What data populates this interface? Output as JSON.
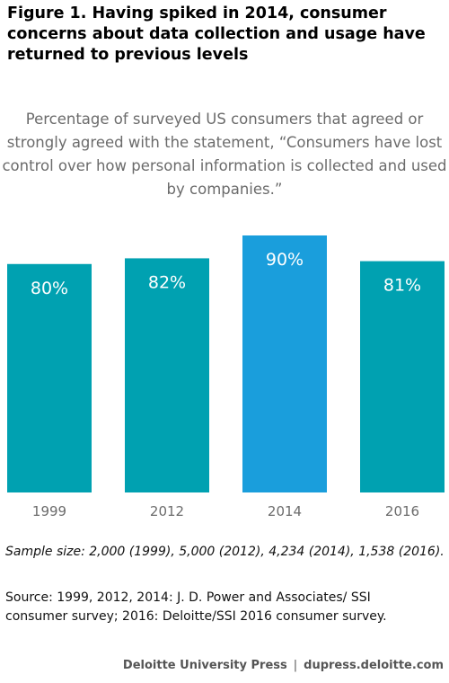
{
  "title": "Figure 1. Having spiked in 2014, consumer concerns about data collection and usage have returned to previous levels",
  "subtitle": "Percentage of surveyed US consumers that agreed or strongly agreed with the statement, “Consumers have lost control over how personal information is collected and used by companies.”",
  "note": "Sample size: 2,000 (1999), 5,000 (2012), 4,234 (2014), 1,538 (2016).",
  "source": "Source: 1999, 2012, 2014: J. D. Power and Associates/ SSI consumer survey; 2016: Deloitte/SSI 2016 consumer survey.",
  "footer": {
    "publisher": "Deloitte University Press",
    "separator": "|",
    "url": "dupress.deloitte.com"
  },
  "chart_data": {
    "type": "bar",
    "categories": [
      "1999",
      "2012",
      "2014",
      "2016"
    ],
    "values": [
      80,
      82,
      90,
      81
    ],
    "value_labels": [
      "80%",
      "82%",
      "90%",
      "81%"
    ],
    "unit": "%",
    "colors": [
      "#00a1b1",
      "#00a1b1",
      "#1a9edc",
      "#00a1b1"
    ],
    "title": "",
    "xlabel": "",
    "ylabel": "",
    "ylim": [
      0,
      90
    ],
    "grid": false,
    "legend": "none"
  }
}
